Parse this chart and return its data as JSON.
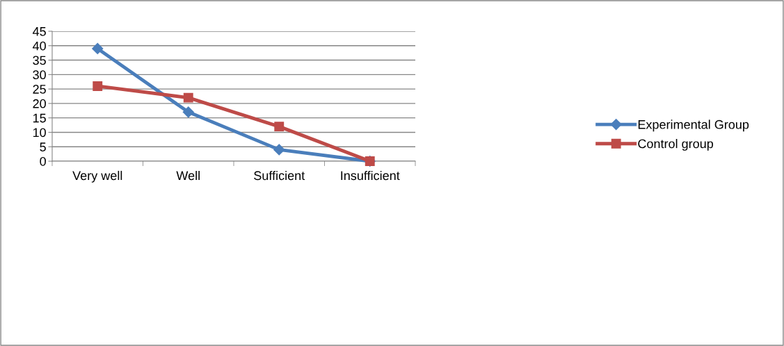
{
  "chart_data": {
    "type": "line",
    "categories": [
      "Very well",
      "Well",
      "Sufficient",
      "Insufficient"
    ],
    "series": [
      {
        "name": "Experimental Group",
        "color": "#4a7ebb",
        "marker": "diamond",
        "values": [
          39,
          17,
          4,
          0
        ]
      },
      {
        "name": "Control group",
        "color": "#be4b48",
        "marker": "square",
        "values": [
          26,
          22,
          12,
          0
        ]
      }
    ],
    "ylim": [
      0,
      45
    ],
    "yticks": [
      0,
      5,
      10,
      15,
      20,
      25,
      30,
      35,
      40,
      45
    ],
    "grid": "y",
    "legend": "right",
    "line_style": "solid"
  }
}
